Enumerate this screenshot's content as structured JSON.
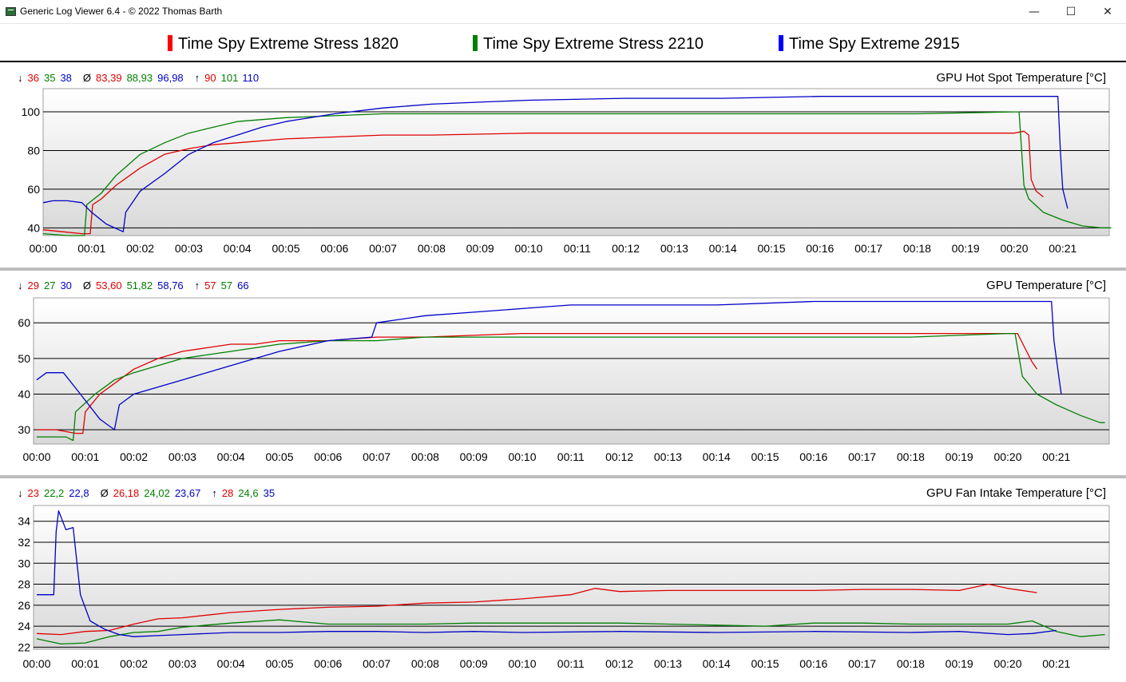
{
  "window": {
    "title": "Generic Log Viewer 6.4 - © 2022 Thomas Barth",
    "controls": {
      "minimize": "—",
      "maximize": "☐",
      "close": "✕"
    }
  },
  "legend": [
    {
      "name": "Time Spy Extreme Stress 1820",
      "color": "#ff0000"
    },
    {
      "name": "Time Spy Extreme Stress 2210",
      "color": "#008000"
    },
    {
      "name": "Time Spy Extreme 2915",
      "color": "#0000ff"
    }
  ],
  "colors": {
    "red": "#e00000",
    "green": "#008000",
    "blue": "#0000c8",
    "grid": "#000000",
    "plot_top": "#ffffff",
    "plot_bottom": "#d8d8d8"
  },
  "chart_data": [
    {
      "type": "line",
      "title": "GPU Hot Spot Temperature [°C]",
      "stats": {
        "min": [
          "36",
          "35",
          "38"
        ],
        "avg": [
          "83,39",
          "88,93",
          "96,98"
        ],
        "max": [
          "90",
          "101",
          "110"
        ]
      },
      "x_ticks": [
        "00:00",
        "00:01",
        "00:02",
        "00:03",
        "00:04",
        "00:05",
        "00:06",
        "00:07",
        "00:08",
        "00:09",
        "00:10",
        "00:11",
        "00:12",
        "00:13",
        "00:14",
        "00:15",
        "00:16",
        "00:17",
        "00:18",
        "00:19",
        "00:20",
        "00:21"
      ],
      "y_ticks": [
        40,
        60,
        80,
        100
      ],
      "ylim": [
        36,
        112
      ],
      "xlim_min": [
        0,
        22.1
      ],
      "grid": true,
      "series": [
        {
          "name": "Time Spy Extreme Stress 1820",
          "x": [
            0,
            0.4,
            0.8,
            0.97,
            1.02,
            1.2,
            1.5,
            2.0,
            2.5,
            3.0,
            3.5,
            4.0,
            5.0,
            6.0,
            7.0,
            8.0,
            10.0,
            12.0,
            14.0,
            16.0,
            18.0,
            20.0,
            20.2,
            20.3,
            20.35,
            20.45,
            20.6
          ],
          "y": [
            39,
            38,
            37,
            37,
            52,
            55,
            62,
            71,
            78,
            81,
            83,
            84,
            86,
            87,
            88,
            88,
            89,
            89,
            89,
            89,
            89,
            89,
            90,
            88,
            65,
            59,
            56
          ]
        },
        {
          "name": "Time Spy Extreme Stress 2210",
          "x": [
            0,
            0.5,
            0.85,
            0.9,
            1.2,
            1.5,
            2.0,
            2.5,
            3.0,
            3.5,
            4.0,
            5.0,
            6.0,
            7.0,
            8.0,
            10.0,
            12.0,
            14.0,
            16.0,
            18.0,
            20.0,
            20.1,
            20.2,
            20.3,
            20.6,
            21.0,
            21.4,
            21.8,
            22.0
          ],
          "y": [
            37,
            36,
            36,
            52,
            58,
            67,
            78,
            84,
            89,
            92,
            95,
            97,
            98,
            99,
            99,
            99,
            99,
            99,
            99,
            99,
            100,
            100,
            62,
            55,
            48,
            44,
            41,
            40,
            40
          ]
        },
        {
          "name": "Time Spy Extreme 2915",
          "x": [
            0,
            0.2,
            0.5,
            0.8,
            1.0,
            1.3,
            1.65,
            1.7,
            2.0,
            2.5,
            3.0,
            3.5,
            4.0,
            4.5,
            5.0,
            6.0,
            7.0,
            8.0,
            9.0,
            10.0,
            12.0,
            14.0,
            16.0,
            18.0,
            19.5,
            20.9,
            20.95,
            21.0,
            21.1
          ],
          "y": [
            53,
            54,
            54,
            53,
            48,
            42,
            38,
            48,
            59,
            68,
            78,
            84,
            88,
            92,
            95,
            99,
            102,
            104,
            105,
            106,
            107,
            107,
            108,
            108,
            108,
            108,
            80,
            60,
            50
          ]
        }
      ]
    },
    {
      "type": "line",
      "title": "GPU Temperature [°C]",
      "stats": {
        "min": [
          "29",
          "27",
          "30"
        ],
        "avg": [
          "53,60",
          "51,82",
          "58,76"
        ],
        "max": [
          "57",
          "57",
          "66"
        ]
      },
      "x_ticks": [
        "00:00",
        "00:01",
        "00:02",
        "00:03",
        "00:04",
        "00:05",
        "00:06",
        "00:07",
        "00:08",
        "00:09",
        "00:10",
        "00:11",
        "00:12",
        "00:13",
        "00:14",
        "00:15",
        "00:16",
        "00:17",
        "00:18",
        "00:19",
        "00:20",
        "00:21"
      ],
      "y_ticks": [
        30,
        40,
        50,
        60
      ],
      "ylim": [
        26,
        67
      ],
      "xlim_min": [
        0,
        22.1
      ],
      "grid": true,
      "series": [
        {
          "name": "Time Spy Extreme Stress 1820",
          "x": [
            0,
            0.4,
            0.8,
            0.95,
            1.0,
            1.3,
            1.7,
            2.0,
            2.5,
            3.0,
            3.5,
            4.0,
            4.5,
            5.0,
            6.0,
            7.0,
            8.0,
            10.0,
            12.0,
            14.0,
            16.0,
            18.0,
            20.0,
            20.2,
            20.35,
            20.5,
            20.6
          ],
          "y": [
            30,
            30,
            29,
            29,
            35,
            40,
            44,
            47,
            50,
            52,
            53,
            54,
            54,
            55,
            55,
            56,
            56,
            57,
            57,
            57,
            57,
            57,
            57,
            57,
            53,
            49,
            47
          ]
        },
        {
          "name": "Time Spy Extreme Stress 2210",
          "x": [
            0,
            0.6,
            0.75,
            0.8,
            1.2,
            1.6,
            2.0,
            2.5,
            3.0,
            3.5,
            4.0,
            4.5,
            5.0,
            6.0,
            7.0,
            8.0,
            10.0,
            12.0,
            14.0,
            16.0,
            18.0,
            20.0,
            20.15,
            20.3,
            20.6,
            21.0,
            21.5,
            21.9,
            22.0
          ],
          "y": [
            28,
            28,
            27,
            35,
            40,
            44,
            46,
            48,
            50,
            51,
            52,
            53,
            54,
            55,
            55,
            56,
            56,
            56,
            56,
            56,
            56,
            57,
            57,
            45,
            40,
            37,
            34,
            32,
            32
          ]
        },
        {
          "name": "Time Spy Extreme 2915",
          "x": [
            0,
            0.2,
            0.55,
            0.9,
            1.3,
            1.6,
            1.7,
            2.0,
            2.5,
            3.0,
            3.5,
            4.0,
            5.0,
            6.0,
            6.9,
            7.0,
            8.0,
            9.0,
            10.0,
            11.0,
            12.0,
            14.0,
            16.0,
            18.0,
            20.0,
            20.9,
            20.95,
            21.05,
            21.1
          ],
          "y": [
            44,
            46,
            46,
            40,
            33,
            30,
            37,
            40,
            42,
            44,
            46,
            48,
            52,
            55,
            56,
            60,
            62,
            63,
            64,
            65,
            65,
            65,
            66,
            66,
            66,
            66,
            55,
            45,
            40
          ]
        }
      ]
    },
    {
      "type": "line",
      "title": "GPU Fan Intake Temperature [°C]",
      "stats": {
        "min": [
          "23",
          "22,2",
          "22,8"
        ],
        "avg": [
          "26,18",
          "24,02",
          "23,67"
        ],
        "max": [
          "28",
          "24,6",
          "35"
        ]
      },
      "x_ticks": [
        "00:00",
        "00:01",
        "00:02",
        "00:03",
        "00:04",
        "00:05",
        "00:06",
        "00:07",
        "00:08",
        "00:09",
        "00:10",
        "00:11",
        "00:12",
        "00:13",
        "00:14",
        "00:15",
        "00:16",
        "00:17",
        "00:18",
        "00:19",
        "00:20",
        "00:21"
      ],
      "y_ticks": [
        22,
        24,
        26,
        28,
        30,
        32,
        34
      ],
      "ylim": [
        21.8,
        35.5
      ],
      "xlim_min": [
        0,
        22.1
      ],
      "grid": true,
      "series": [
        {
          "name": "Time Spy Extreme Stress 1820",
          "x": [
            0,
            0.5,
            1.0,
            1.5,
            2.0,
            2.5,
            3.0,
            4.0,
            5.0,
            6.0,
            7.0,
            8.0,
            9.0,
            10.0,
            11.0,
            11.5,
            12.0,
            13.0,
            14.0,
            15.0,
            16.0,
            17.0,
            18.0,
            19.0,
            19.6,
            20.0,
            20.6
          ],
          "y": [
            23.3,
            23.2,
            23.5,
            23.6,
            24.2,
            24.7,
            24.8,
            25.3,
            25.6,
            25.8,
            25.9,
            26.2,
            26.3,
            26.6,
            27.0,
            27.6,
            27.3,
            27.4,
            27.4,
            27.4,
            27.4,
            27.5,
            27.5,
            27.4,
            28.0,
            27.6,
            27.2
          ]
        },
        {
          "name": "Time Spy Extreme Stress 2210",
          "x": [
            0,
            0.5,
            1.0,
            1.5,
            2.0,
            2.5,
            3.0,
            4.0,
            5.0,
            6.0,
            7.0,
            8.0,
            9.0,
            10.0,
            11.0,
            12.0,
            13.0,
            14.0,
            15.0,
            16.0,
            17.0,
            18.0,
            19.0,
            20.0,
            20.5,
            21.0,
            21.5,
            22.0
          ],
          "y": [
            22.8,
            22.3,
            22.4,
            23.0,
            23.4,
            23.5,
            23.9,
            24.3,
            24.6,
            24.2,
            24.2,
            24.2,
            24.3,
            24.3,
            24.3,
            24.3,
            24.2,
            24.1,
            24.0,
            24.3,
            24.3,
            24.2,
            24.2,
            24.2,
            24.5,
            23.5,
            23.0,
            23.2
          ]
        },
        {
          "name": "Time Spy Extreme 2915",
          "x": [
            0,
            0.35,
            0.4,
            0.45,
            0.6,
            0.75,
            0.9,
            1.1,
            1.4,
            1.7,
            2.0,
            2.5,
            3.0,
            4.0,
            5.0,
            6.0,
            7.0,
            8.0,
            9.0,
            10.0,
            12.0,
            14.0,
            16.0,
            18.0,
            19.0,
            20.0,
            20.5,
            21.0
          ],
          "y": [
            27.0,
            27.0,
            33.0,
            35.0,
            33.2,
            33.4,
            27.0,
            24.5,
            23.7,
            23.2,
            23.0,
            23.1,
            23.2,
            23.4,
            23.4,
            23.5,
            23.5,
            23.4,
            23.5,
            23.4,
            23.5,
            23.4,
            23.5,
            23.4,
            23.5,
            23.2,
            23.3,
            23.6
          ]
        }
      ]
    }
  ]
}
